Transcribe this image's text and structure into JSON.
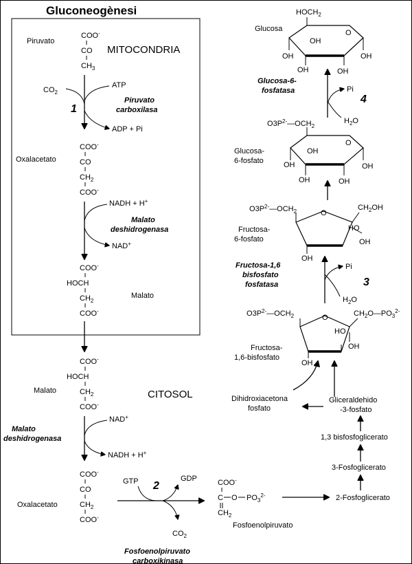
{
  "title": "Gluconeogènesi",
  "compartments": {
    "mitochondria": "MITOCONDRIA",
    "cytosol": "CITOSOL"
  },
  "steps": {
    "one": "1",
    "two": "2",
    "three": "3",
    "four": "4"
  },
  "enzymes": {
    "pyruvate_carboxylase": [
      "Piruvato",
      "carboxilasa"
    ],
    "malate_dh_mito": [
      "Malato",
      "deshidrogenasa"
    ],
    "malate_dh_cyto": [
      "Malato",
      "deshidrogenasa"
    ],
    "pepck": [
      "Fosfoenolpiruvato",
      "carboxikinasa"
    ],
    "fbpase": [
      "Fructosa-1,6",
      "bisfosfato",
      "fosfatasa"
    ],
    "g6pase": [
      "Glucosa-6-",
      "fosfatasa"
    ]
  },
  "molecules": {
    "pyruvate": "Piruvato",
    "oxaloacetate_mito": "Oxalacetato",
    "malate_mito": "Malato",
    "malate_cyto": "Malato",
    "oxaloacetate_cyto": "Oxalacetato",
    "pep": "Fosfoenolpiruvato",
    "pg2": "2-Fosfoglicerato",
    "pg3": "3-Fosfoglicerato",
    "bpg": "1,3 bisfosfoglicerato",
    "gap": [
      "Gliceraldehido",
      "-3-fosfato"
    ],
    "dhap": [
      "Dihidroxiacetona",
      "fosfato"
    ],
    "f16bp": [
      "Fructosa-",
      "1,6-bisfosfato"
    ],
    "f6p": [
      "Fructosa-",
      "6-fosfato"
    ],
    "g6p": [
      "Glucosa-",
      "6-fosfato"
    ],
    "glucose": "Glucosa"
  },
  "cofactors": {
    "co2_in": "CO2",
    "atp": "ATP",
    "adp_pi": "ADP + Pi",
    "nadh_in": "NADH + H+",
    "nad_out": "NAD+",
    "nad_in": "NAD+",
    "nadh_out": "NADH + H+",
    "gtp": "GTP",
    "gdp": "GDP",
    "co2_out": "CO2",
    "pi3": "Pi",
    "h2o3": "H2O",
    "pi4": "Pi",
    "h2o4": "H2O"
  }
}
